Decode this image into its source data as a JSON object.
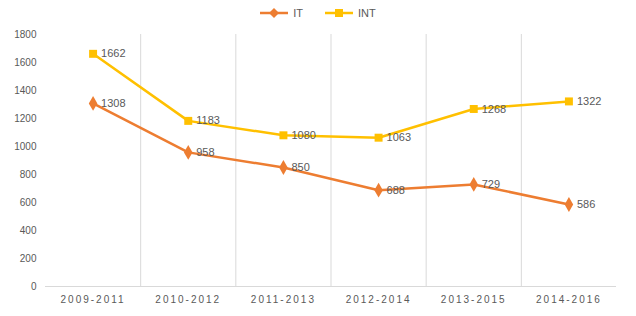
{
  "chart_data": {
    "type": "line",
    "categories": [
      "2009-2011",
      "2010-2012",
      "2011-2013",
      "2012-2014",
      "2013-2015",
      "2014-2016"
    ],
    "series": [
      {
        "name": "IT",
        "color": "#ED7D31",
        "marker": "diamond",
        "values": [
          1308,
          958,
          850,
          688,
          729,
          586
        ]
      },
      {
        "name": "INT",
        "color": "#FFC000",
        "marker": "square",
        "values": [
          1662,
          1183,
          1080,
          1063,
          1268,
          1322
        ]
      }
    ],
    "ylim": [
      0,
      1800
    ],
    "yticks": [
      0,
      200,
      400,
      600,
      800,
      1000,
      1200,
      1400,
      1600,
      1800
    ],
    "grid": true,
    "legend": "top",
    "data_labels": true
  }
}
